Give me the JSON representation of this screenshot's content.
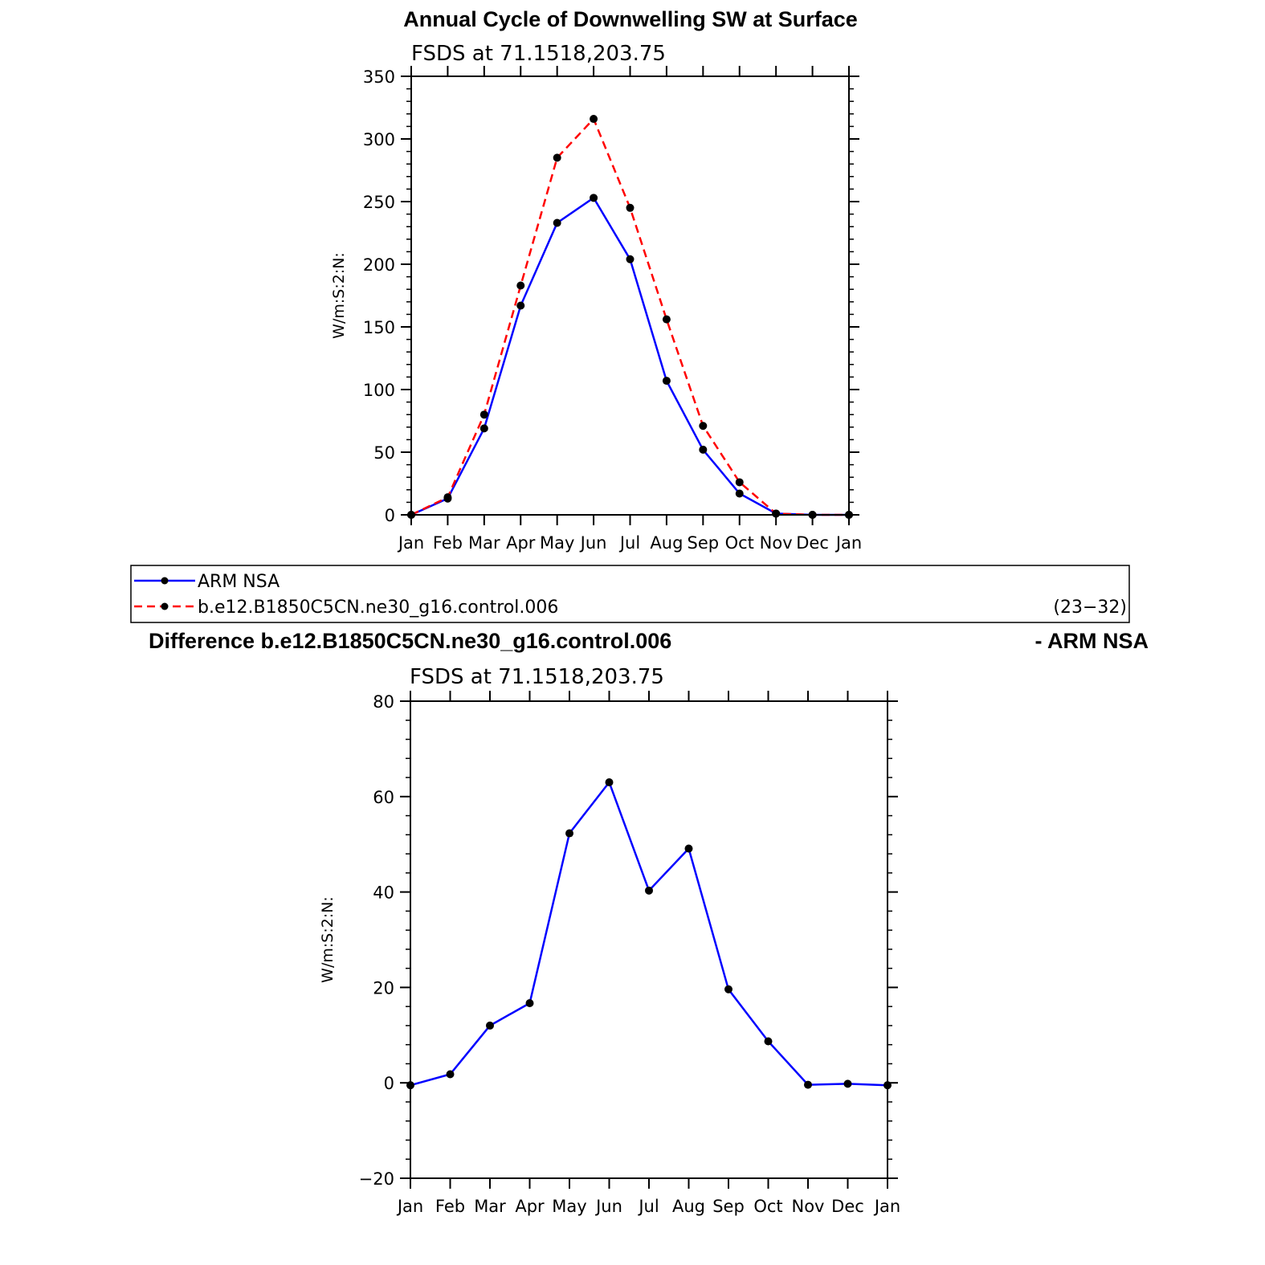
{
  "chart_data": [
    {
      "type": "line",
      "title": "Annual Cycle of Downwelling SW at Surface",
      "subtitle": "FSDS at 71.1518,203.75",
      "ylabel": "W/m:S:2:N:",
      "xlabel": "",
      "categories": [
        "Jan",
        "Feb",
        "Mar",
        "Apr",
        "May",
        "Jun",
        "Jul",
        "Aug",
        "Sep",
        "Oct",
        "Nov",
        "Dec",
        "Jan"
      ],
      "ylim": [
        0,
        350
      ],
      "yticks": [
        0,
        50,
        100,
        150,
        200,
        250,
        300,
        350
      ],
      "grid": false,
      "series": [
        {
          "name": "ARM NSA",
          "color": "#0000ff",
          "dash": "solid",
          "values": [
            0,
            13,
            69,
            167,
            233,
            253,
            204,
            107,
            52,
            17,
            1,
            0,
            0
          ]
        },
        {
          "name": "b.e12.B1850C5CN.ne30_g16.control.006",
          "color": "#ff0000",
          "dash": "dashed",
          "values": [
            0,
            14,
            80,
            183,
            285,
            316,
            245,
            156,
            71,
            26,
            1,
            0,
            0
          ]
        }
      ],
      "legend": {
        "placement": "bottom",
        "items": [
          {
            "label": "ARM NSA",
            "color": "#0000ff",
            "dash": "solid"
          },
          {
            "label": "b.e12.B1850C5CN.ne30_g16.control.006",
            "color": "#ff0000",
            "dash": "dashed"
          }
        ],
        "note": "(23−32)"
      }
    },
    {
      "type": "line",
      "title_left": "Difference b.e12.B1850C5CN.ne30_g16.control.006",
      "title_right": "- ARM NSA",
      "subtitle": "FSDS at 71.1518,203.75",
      "ylabel": "W/m:S:2:N:",
      "xlabel": "",
      "categories": [
        "Jan",
        "Feb",
        "Mar",
        "Apr",
        "May",
        "Jun",
        "Jul",
        "Aug",
        "Sep",
        "Oct",
        "Nov",
        "Dec",
        "Jan"
      ],
      "ylim": [
        -20,
        80
      ],
      "yticks": [
        -20,
        0,
        20,
        40,
        60,
        80
      ],
      "ytick_labels": [
        "−20",
        "0",
        "20",
        "40",
        "60",
        "80"
      ],
      "grid": false,
      "series": [
        {
          "name": "",
          "color": "#0000ff",
          "dash": "solid",
          "values": [
            -0.5,
            1.8,
            12,
            16.7,
            52.3,
            63,
            40.3,
            49.1,
            19.6,
            8.7,
            -0.4,
            -0.2,
            -0.5
          ]
        }
      ]
    }
  ]
}
